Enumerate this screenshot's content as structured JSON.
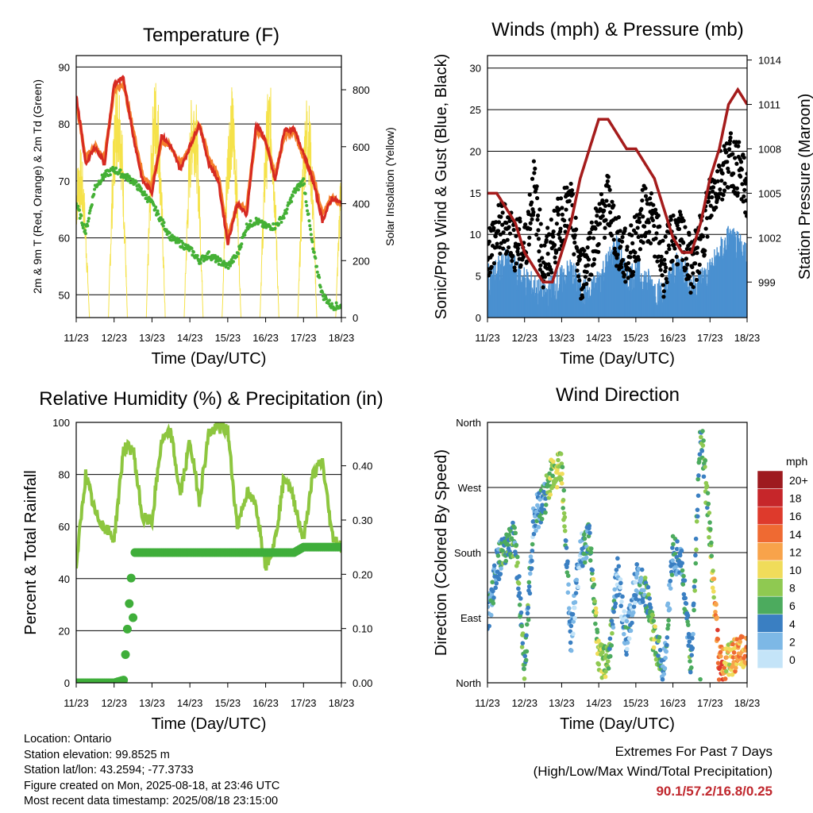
{
  "chart_data": [
    {
      "type": "line",
      "title": "Temperature (F)",
      "xlabel": "Time (Day/UTC)",
      "ylabel": "2m & 9m T (Red, Orange) & 2m Td (Green)",
      "y2label": "Solar Insolation (Yellow)",
      "x_ticks": [
        "11/23",
        "12/23",
        "13/23",
        "14/23",
        "15/23",
        "16/23",
        "17/23",
        "18/23"
      ],
      "y_ticks": [
        50,
        60,
        70,
        80,
        90
      ],
      "y2_ticks": [
        0,
        200,
        400,
        600,
        800
      ],
      "ylim": [
        46,
        92
      ],
      "y2lim": [
        0,
        920
      ],
      "x": [
        0,
        0.25,
        0.5,
        0.75,
        1,
        1.25,
        1.5,
        1.75,
        2,
        2.25,
        2.5,
        2.75,
        3,
        3.25,
        3.5,
        3.75,
        4,
        4.25,
        4.5,
        4.75,
        5,
        5.25,
        5.5,
        5.75,
        6,
        6.25,
        6.5,
        6.75,
        7
      ],
      "series": [
        {
          "name": "2m T",
          "color": "#d62a22",
          "values": [
            85,
            73,
            76,
            73,
            87,
            88,
            78,
            70,
            68,
            78,
            76,
            72,
            76,
            80,
            73,
            70,
            59,
            66,
            64,
            80,
            77,
            70,
            79,
            79,
            75,
            70,
            63,
            67,
            66
          ]
        },
        {
          "name": "9m T",
          "color": "#f57f2c",
          "values": [
            84,
            74,
            76,
            74,
            86,
            87,
            79,
            71,
            69,
            77,
            76,
            73,
            76,
            80,
            74,
            71,
            60,
            66,
            65,
            79,
            77,
            71,
            78,
            79,
            74,
            71,
            64,
            67,
            66
          ]
        },
        {
          "name": "2m Td",
          "color": "#44b035",
          "values": [
            66,
            61,
            69,
            71,
            72,
            71,
            70,
            68,
            66,
            63,
            60,
            59,
            58,
            56,
            57,
            56,
            55,
            57,
            62,
            63,
            62,
            62,
            64,
            68,
            70,
            58,
            50,
            48,
            48
          ]
        },
        {
          "name": "Solar Insolation",
          "color": "#f5e24a",
          "axis": "right",
          "values": [
            600,
            0,
            880,
            0,
            860,
            0,
            860,
            0,
            840,
            0,
            820,
            0,
            830,
            0,
            800,
            0,
            800,
            0,
            820,
            0,
            800,
            0,
            820,
            0,
            900,
            0,
            870,
            0,
            720
          ]
        }
      ]
    },
    {
      "type": "scatter",
      "title": "Winds (mph) & Pressure (mb)",
      "xlabel": "Time (Day/UTC)",
      "ylabel": "Sonic/Prop Wind & Gust (Blue, Black)",
      "y2label": "Station Pressure (Maroon)",
      "x_ticks": [
        "11/23",
        "12/23",
        "13/23",
        "14/23",
        "15/23",
        "16/23",
        "17/23",
        "18/23"
      ],
      "y_ticks": [
        0,
        5,
        10,
        15,
        20,
        25,
        30
      ],
      "y2_ticks": [
        999,
        1002,
        1005,
        1008,
        1011,
        1014
      ],
      "ylim": [
        0,
        31.5
      ],
      "y2lim": [
        996.6,
        1014.3
      ],
      "x": [
        0,
        0.25,
        0.5,
        0.75,
        1,
        1.25,
        1.5,
        1.75,
        2,
        2.25,
        2.5,
        2.75,
        3,
        3.25,
        3.5,
        3.75,
        4,
        4.25,
        4.5,
        4.75,
        5,
        5.25,
        5.5,
        5.75,
        6,
        6.25,
        6.5,
        6.75,
        7
      ],
      "series": [
        {
          "name": "Wind",
          "color": "#4a90d0",
          "values": [
            4,
            5,
            6,
            5,
            4,
            3,
            2,
            3,
            4,
            5,
            3,
            2,
            4,
            6,
            8,
            4,
            5,
            4,
            3,
            2,
            5,
            6,
            3,
            4,
            5,
            7,
            9,
            8,
            7
          ]
        },
        {
          "name": "Gust",
          "color": "#000000",
          "values": [
            8,
            10,
            11,
            9,
            8,
            16,
            6,
            9,
            12,
            13,
            5,
            8,
            11,
            14,
            9,
            7,
            9,
            13,
            11,
            6,
            10,
            9,
            6,
            9,
            14,
            17,
            19,
            18,
            15
          ]
        },
        {
          "name": "Pressure",
          "color": "#a51c1c",
          "axis": "right",
          "values": [
            1005,
            1005,
            1004,
            1003,
            1001,
            1000,
            999,
            999,
            1001,
            1003,
            1006,
            1008,
            1010,
            1010,
            1009,
            1008,
            1008,
            1007,
            1006,
            1004,
            1002,
            1001,
            1001,
            1003,
            1006,
            1008,
            1011,
            1012,
            1011
          ]
        }
      ]
    },
    {
      "type": "line",
      "title": "Relative Humidity (%) & Precipitation (in)",
      "xlabel": "Time (Day/UTC)",
      "ylabel": "Percent & Total Rainfall",
      "x_ticks": [
        "11/23",
        "12/23",
        "13/23",
        "14/23",
        "15/23",
        "16/23",
        "17/23",
        "18/23"
      ],
      "y_ticks": [
        0,
        20,
        40,
        60,
        80,
        100
      ],
      "y2_ticks": [
        "0.00",
        "0.10",
        "0.20",
        "0.30",
        "0.40"
      ],
      "ylim": [
        0,
        100
      ],
      "y2lim": [
        0,
        0.48
      ],
      "x": [
        0,
        0.25,
        0.5,
        0.75,
        1,
        1.25,
        1.5,
        1.75,
        2,
        2.25,
        2.5,
        2.75,
        3,
        3.25,
        3.5,
        3.75,
        4,
        4.25,
        4.5,
        4.75,
        5,
        5.25,
        5.5,
        5.75,
        6,
        6.25,
        6.5,
        6.75,
        7
      ],
      "series": [
        {
          "name": "RH",
          "color": "#8dc63f",
          "values": [
            45,
            80,
            65,
            60,
            55,
            90,
            90,
            63,
            62,
            93,
            96,
            72,
            93,
            70,
            96,
            98,
            97,
            60,
            73,
            68,
            45,
            55,
            80,
            70,
            55,
            80,
            85,
            57,
            52
          ]
        },
        {
          "name": "Precip",
          "color": "#3fae3a",
          "axis": "right",
          "values": [
            0,
            0,
            0,
            0,
            0,
            0.005,
            0.24,
            0.24,
            0.24,
            0.24,
            0.24,
            0.24,
            0.24,
            0.24,
            0.24,
            0.24,
            0.24,
            0.24,
            0.24,
            0.24,
            0.24,
            0.24,
            0.24,
            0.24,
            0.25,
            0.25,
            0.25,
            0.25,
            0.25
          ]
        }
      ]
    },
    {
      "type": "scatter",
      "title": "Wind Direction",
      "xlabel": "Time (Day/UTC)",
      "ylabel": "Direction (Colored By Speed)",
      "x_ticks": [
        "11/23",
        "12/23",
        "13/23",
        "14/23",
        "15/23",
        "16/23",
        "17/23",
        "18/23"
      ],
      "y_ticks": [
        "North",
        "East",
        "South",
        "West",
        "North"
      ],
      "ylim": [
        0,
        360
      ],
      "colorbar": {
        "title": "mph",
        "labels": [
          "20+",
          "18",
          "16",
          "14",
          "12",
          "10",
          "8",
          "6",
          "4",
          "2",
          "0"
        ],
        "colors": [
          "#9e1a1f",
          "#c6262a",
          "#de3a2c",
          "#ef6a32",
          "#f8a34a",
          "#f0dc5a",
          "#8fc951",
          "#4cab5e",
          "#3a7fc2",
          "#7db8e6",
          "#c4e4f8"
        ]
      },
      "x": [
        0,
        0.25,
        0.5,
        0.75,
        1,
        1.25,
        1.5,
        1.75,
        2,
        2.25,
        2.5,
        2.75,
        3,
        3.25,
        3.5,
        3.75,
        4,
        4.25,
        4.5,
        4.75,
        5,
        5.25,
        5.5,
        5.75,
        6,
        6.25,
        6.5,
        6.75,
        7
      ],
      "series": [
        {
          "name": "Direction",
          "values": [
            90,
            160,
            190,
            200,
            20,
            230,
            250,
            290,
            300,
            60,
            180,
            200,
            30,
            30,
            150,
            60,
            140,
            130,
            60,
            20,
            180,
            160,
            20,
            360,
            200,
            25,
            30,
            40,
            40
          ],
          "speeds": [
            3,
            4,
            6,
            5,
            6,
            3,
            4,
            9,
            8,
            3,
            2,
            5,
            9,
            8,
            2,
            3,
            2,
            5,
            8,
            3,
            4,
            4,
            5,
            6,
            7,
            15,
            10,
            13,
            11
          ]
        }
      ]
    }
  ],
  "info": {
    "location": "Location: Ontario",
    "elevation": "Station elevation: 99.8525 m",
    "latlon": "Station lat/lon: 43.2594; -77.3733",
    "created": "Figure created on Mon, 2025-08-18, at 23:46 UTC",
    "recent": "Most recent data timestamp: 2025/08/18 23:15:00"
  },
  "extremes": {
    "line1": "Extremes For Past 7 Days",
    "line2": "(High/Low/Max Wind/Total Precipitation)",
    "values": "90.1/57.2/16.8/0.25"
  }
}
